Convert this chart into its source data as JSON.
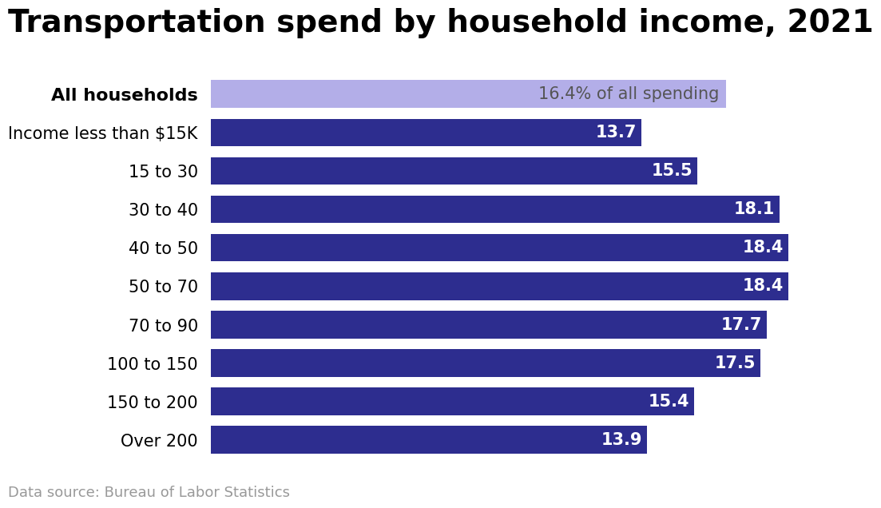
{
  "title": "Transportation spend by household income, 2021",
  "categories": [
    "All households",
    "Income less than $15K",
    "15 to 30",
    "30 to 40",
    "40 to 50",
    "50 to 70",
    "70 to 90",
    "100 to 150",
    "150 to 200",
    "Over 200"
  ],
  "values": [
    16.4,
    13.7,
    15.5,
    18.1,
    18.4,
    18.4,
    17.7,
    17.5,
    15.4,
    13.9
  ],
  "bar_colors": [
    "#b3aee8",
    "#2d2d8f",
    "#2d2d8f",
    "#2d2d8f",
    "#2d2d8f",
    "#2d2d8f",
    "#2d2d8f",
    "#2d2d8f",
    "#2d2d8f",
    "#2d2d8f"
  ],
  "label_colors": [
    "#555555",
    "#ffffff",
    "#ffffff",
    "#ffffff",
    "#ffffff",
    "#ffffff",
    "#ffffff",
    "#ffffff",
    "#ffffff",
    "#ffffff"
  ],
  "all_households_label": "16.4% of all spending",
  "source_text": "Data source: Bureau of Labor Statistics",
  "xlim": [
    0,
    19.5
  ],
  "background_color": "#ffffff",
  "title_fontsize": 28,
  "label_fontsize": 15,
  "category_fontsize": 15,
  "source_fontsize": 13,
  "bar_height": 0.72
}
